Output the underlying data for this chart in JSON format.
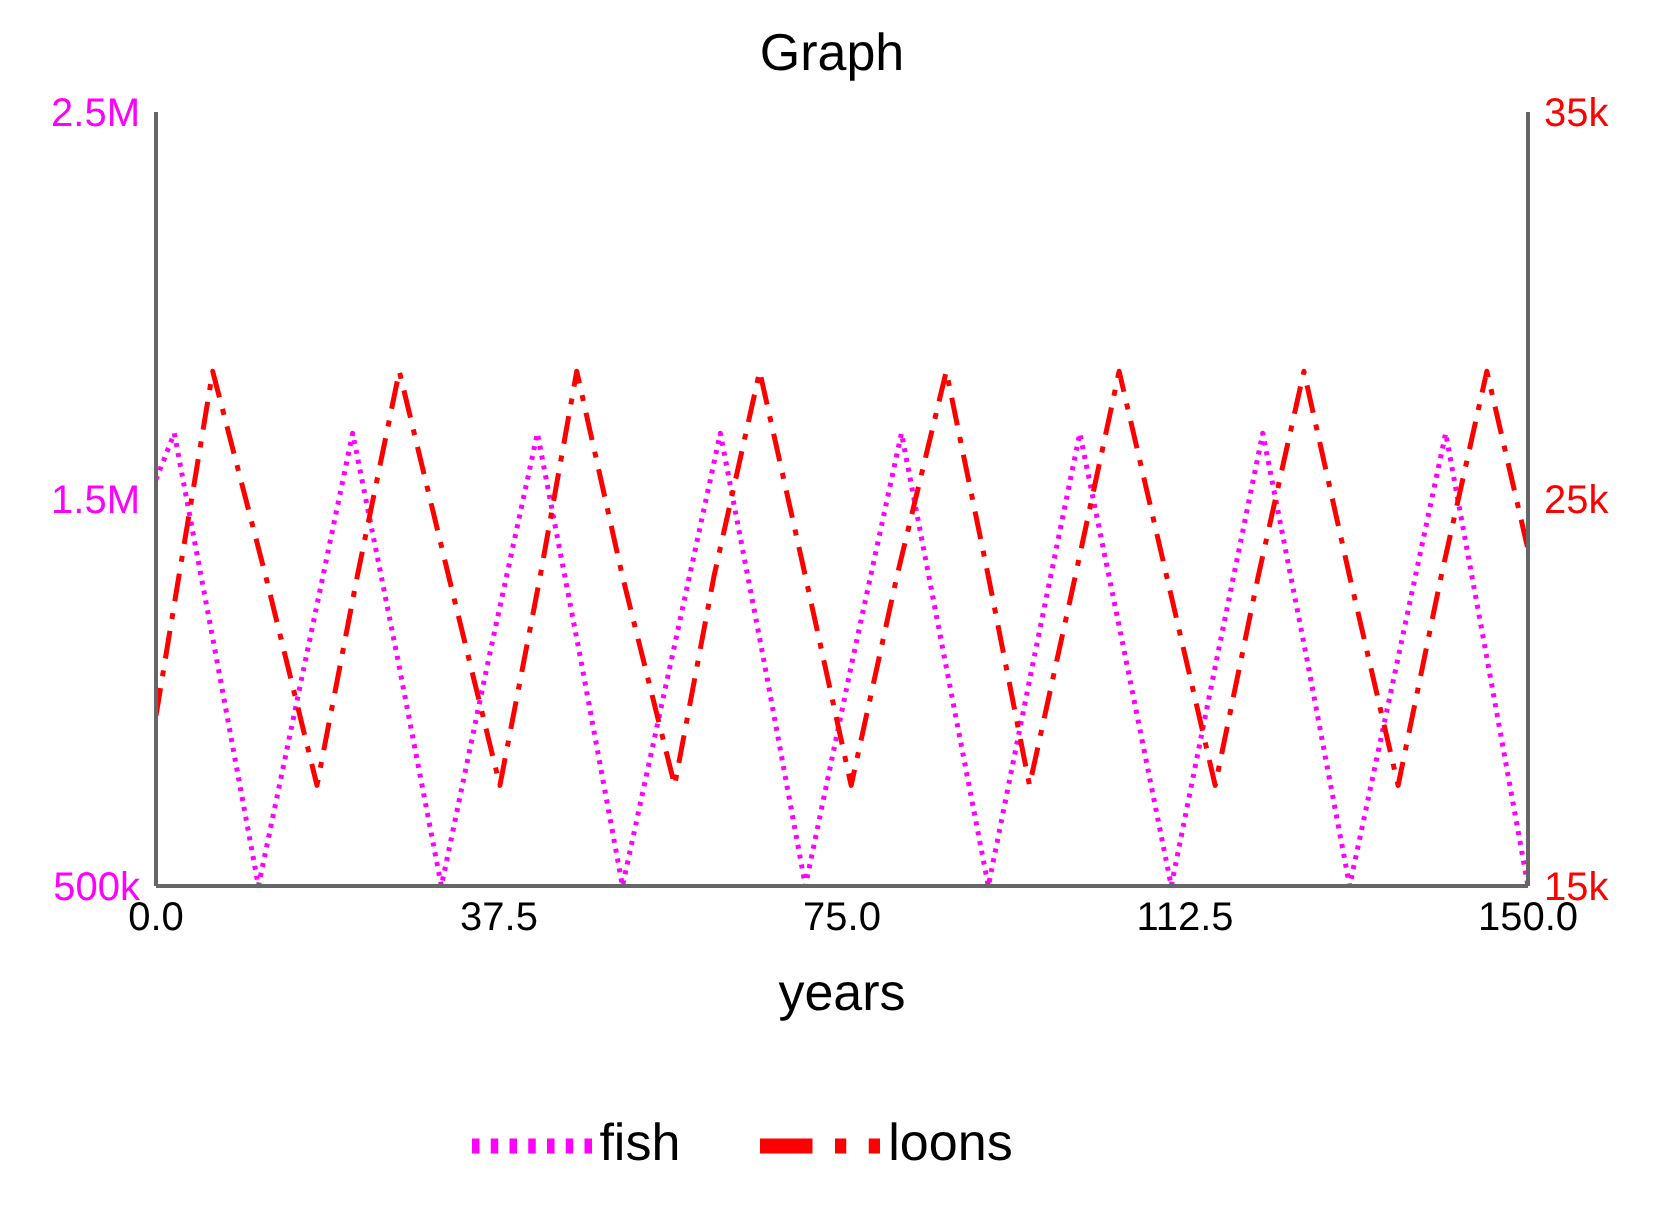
{
  "chart_data": {
    "type": "line",
    "title": "Graph",
    "xlabel": "years",
    "xlim": [
      0,
      150
    ],
    "xticks": [
      {
        "value": 0,
        "label": "0.0"
      },
      37.5,
      {
        "value": 75,
        "label": "75.0"
      },
      112.5,
      {
        "value": 150,
        "label": "150.0"
      }
    ],
    "ylim": [
      500000,
      2500000
    ],
    "yticks": [
      {
        "value": 500000,
        "label": "500k"
      },
      {
        "value": 1500000,
        "label": "1.5M"
      },
      {
        "value": 2500000,
        "label": "2.5M"
      }
    ],
    "y2lim": [
      15000,
      35000
    ],
    "y2ticks": [
      {
        "value": 15000,
        "label": "15k"
      },
      {
        "value": 25000,
        "label": "25k"
      },
      {
        "value": 35000,
        "label": "35k"
      }
    ],
    "grid": false,
    "legend": "bottom",
    "marker": "none",
    "series": [
      {
        "name": "fish",
        "color": "#ff00ff",
        "line_style": "dotted",
        "x": [
          0,
          2,
          6.6,
          11.2,
          16.4,
          21.5,
          26.4,
          31.2,
          36.4,
          41.7,
          46.4,
          51,
          56.4,
          61.7,
          66.4,
          71,
          76.2,
          81.5,
          86.2,
          91,
          96,
          101,
          106,
          111,
          116,
          121,
          125.8,
          130.5,
          135.8,
          141,
          145.5,
          150
        ],
        "values": [
          1550000,
          1670000,
          1090000,
          500000,
          1090000,
          1670000,
          1090000,
          500000,
          1090000,
          1670000,
          1090000,
          500000,
          1090000,
          1670000,
          1090000,
          500000,
          1090000,
          1670000,
          1090000,
          500000,
          1090000,
          1670000,
          1090000,
          500000,
          1090000,
          1670000,
          1090000,
          500000,
          1090000,
          1670000,
          1090000,
          500000
        ]
      },
      {
        "name": "loons",
        "color": "#ff0000",
        "line_style": "dashed",
        "axis": "y2",
        "x": [
          0,
          2.5,
          6.2,
          12,
          17.6,
          22,
          26.6,
          32,
          37.6,
          42,
          46,
          51,
          56.7,
          61,
          66,
          71,
          76,
          81,
          86.4,
          91,
          95.5,
          100.5,
          105.3,
          110.5,
          115.8,
          120.5,
          125.5,
          130.5,
          135.8,
          140.5,
          145.5,
          150
        ],
        "values": [
          19400,
          23000,
          28300,
          23000,
          17600,
          23000,
          28300,
          23000,
          17600,
          23000,
          28300,
          23000,
          17600,
          23000,
          28300,
          23000,
          17600,
          23000,
          28300,
          23000,
          17600,
          23000,
          28300,
          23000,
          17600,
          23000,
          28300,
          23000,
          17600,
          23000,
          28300,
          23700
        ]
      }
    ]
  }
}
